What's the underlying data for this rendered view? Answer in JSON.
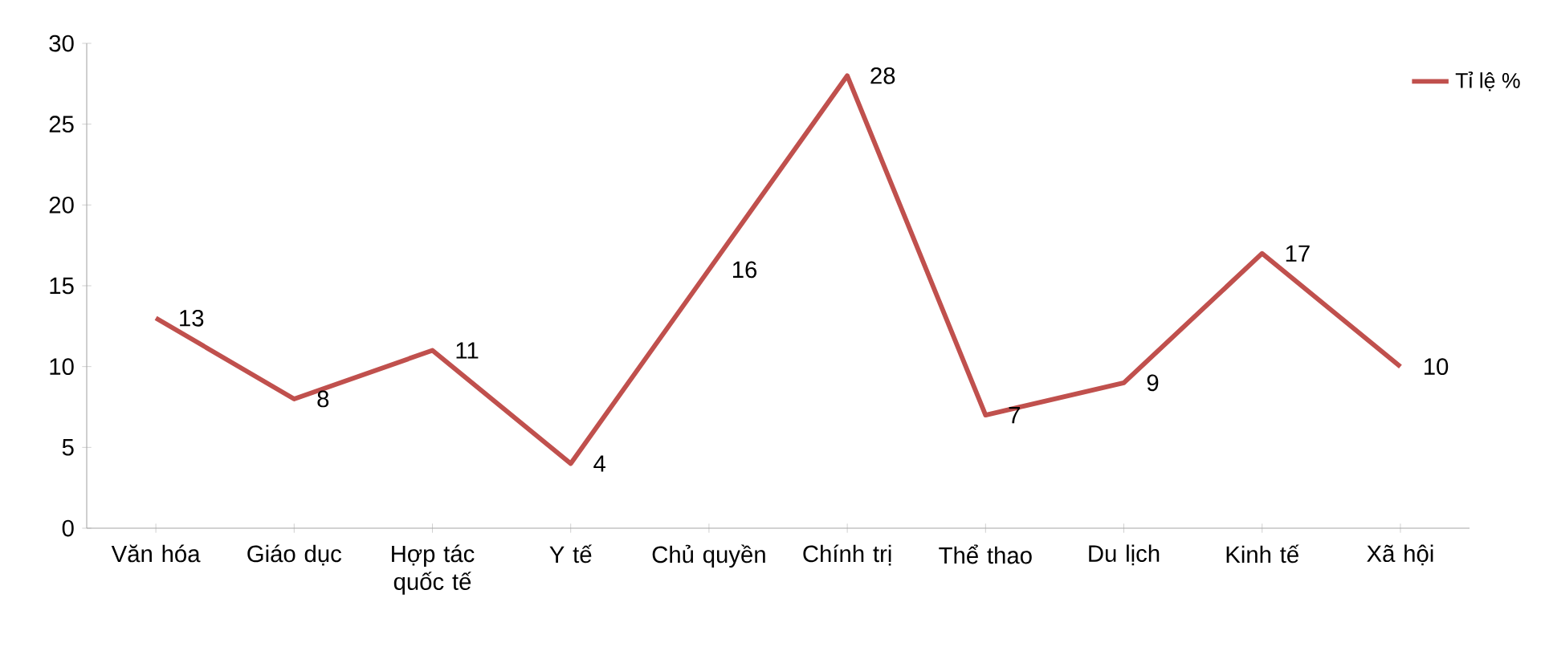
{
  "chart_data": {
    "type": "line",
    "categories": [
      "Văn hóa",
      "Giáo dục",
      "Hợp tác quốc tế",
      "Y tế",
      "Chủ quyền",
      "Chính trị",
      "Thể thao",
      "Du lịch",
      "Kinh tế",
      "Xã hội"
    ],
    "series": [
      {
        "name": "Tỉ lệ %",
        "color": "#c0504d",
        "values": [
          13,
          8,
          11,
          4,
          16,
          28,
          7,
          9,
          17,
          10
        ]
      }
    ],
    "ylim": [
      0,
      30
    ],
    "yticks": [
      0,
      5,
      10,
      15,
      20,
      25,
      30
    ],
    "grid": false,
    "legend": "top right",
    "marker": "none",
    "line_style": "solid",
    "data_labels": true
  }
}
